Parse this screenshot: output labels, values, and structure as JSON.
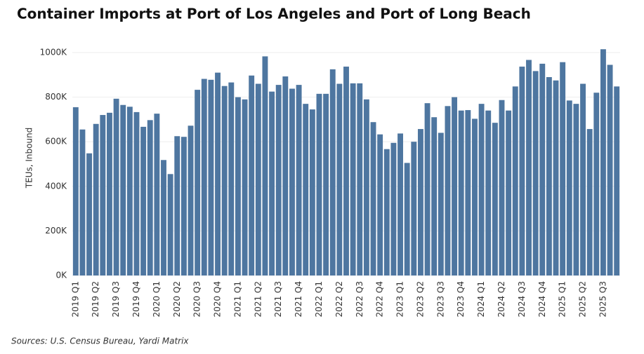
{
  "chart_data": {
    "type": "bar",
    "title": "Container Imports at Port of Los Angeles and Port of Long Beach",
    "y_label": "TEUs, Inbound",
    "source": "Sources: U.S. Census Bureau, Yardi Matrix",
    "color": "#4e76a0",
    "categories": [
      "2019 Q1",
      null,
      null,
      "2019 Q2",
      null,
      null,
      "2019 Q3",
      null,
      null,
      "2019 Q4",
      null,
      null,
      "2020 Q1",
      null,
      null,
      "2020 Q2",
      null,
      null,
      "2020 Q3",
      null,
      null,
      "2020 Q4",
      null,
      null,
      "2021 Q1",
      null,
      null,
      "2021 Q2",
      null,
      null,
      "2021 Q3",
      null,
      null,
      "2021 Q4",
      null,
      null,
      "2022 Q1",
      null,
      null,
      "2022 Q2",
      null,
      null,
      "2022 Q3",
      null,
      null,
      "2022 Q4",
      null,
      null,
      "2023 Q1",
      null,
      null,
      "2023 Q2",
      null,
      null,
      "2023 Q3",
      null,
      null,
      "2023 Q4",
      null,
      null,
      "2024 Q1",
      null,
      null,
      "2024 Q2",
      null,
      null,
      "2024 Q3",
      null,
      null,
      "2024 Q4",
      null,
      null,
      "2025 Q1",
      null,
      null,
      "2025 Q2",
      null,
      null,
      "2025 Q3",
      null,
      null
    ],
    "values": [
      755000,
      655000,
      548000,
      680000,
      720000,
      730000,
      793000,
      765000,
      757000,
      733000,
      667000,
      697000,
      726000,
      518000,
      455000,
      625000,
      622000,
      672000,
      833000,
      882000,
      878000,
      910000,
      850000,
      866000,
      800000,
      790000,
      897000,
      860000,
      983000,
      825000,
      855000,
      893000,
      838000,
      855000,
      770000,
      745000,
      815000,
      815000,
      925000,
      860000,
      937000,
      862000,
      862000,
      790000,
      688000,
      633000,
      567000,
      595000,
      637000,
      505000,
      600000,
      657000,
      773000,
      710000,
      640000,
      760000,
      800000,
      740000,
      742000,
      703000,
      770000,
      740000,
      685000,
      787000,
      740000,
      848000,
      937000,
      967000,
      917000,
      950000,
      890000,
      875000,
      957000,
      785000,
      770000,
      860000,
      657000,
      820000,
      1015000,
      945000,
      848000
    ],
    "ylim": [
      0,
      1000000
    ],
    "yticks": [
      {
        "value": 0,
        "label": "0K"
      },
      {
        "value": 200000,
        "label": "200K"
      },
      {
        "value": 400000,
        "label": "400K"
      },
      {
        "value": 600000,
        "label": "600K"
      },
      {
        "value": 800000,
        "label": "800K"
      },
      {
        "value": 1000000,
        "label": "1000K"
      }
    ],
    "grid": true
  }
}
